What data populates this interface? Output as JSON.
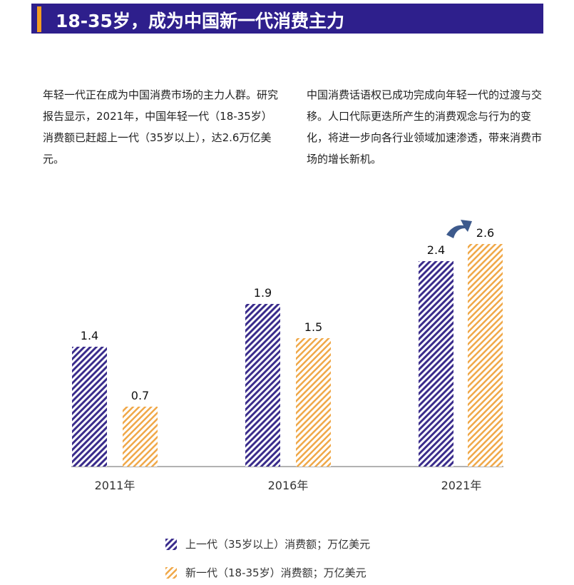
{
  "header": {
    "title": "18-35岁，成为中国新一代消费主力"
  },
  "paragraphs": [
    "年轻一代正在成为中国消费市场的主力人群。研究报告显示，2021年，中国年轻一代（18-35岁）消费额已赶超上一代（35岁以上），达2.6万亿美元。",
    "中国消费话语权已成功完成向年轻一代的过渡与交移。人口代际更迭所产生的消费观念与行为的变化，将进一步向各行业领域加速渗透，带来消费市场的增长新机。"
  ],
  "chart_data": {
    "type": "bar",
    "categories": [
      "2011年",
      "2016年",
      "2021年"
    ],
    "series": [
      {
        "name": "上一代（35岁以上）消费额；万亿美元",
        "values": [
          1.4,
          1.9,
          2.4
        ],
        "color": "#3a2c8c",
        "labels": [
          "1.4",
          "1.9",
          "2.4"
        ]
      },
      {
        "name": "新一代（18-35岁）消费额；万亿美元",
        "values": [
          0.7,
          1.5,
          2.6
        ],
        "color": "#f0a848",
        "labels": [
          "0.7",
          "1.5",
          "2.6"
        ]
      }
    ],
    "ylim": [
      0,
      2.6
    ],
    "legend": "bottom",
    "annotation_icon": "curved-up-arrow-icon"
  }
}
